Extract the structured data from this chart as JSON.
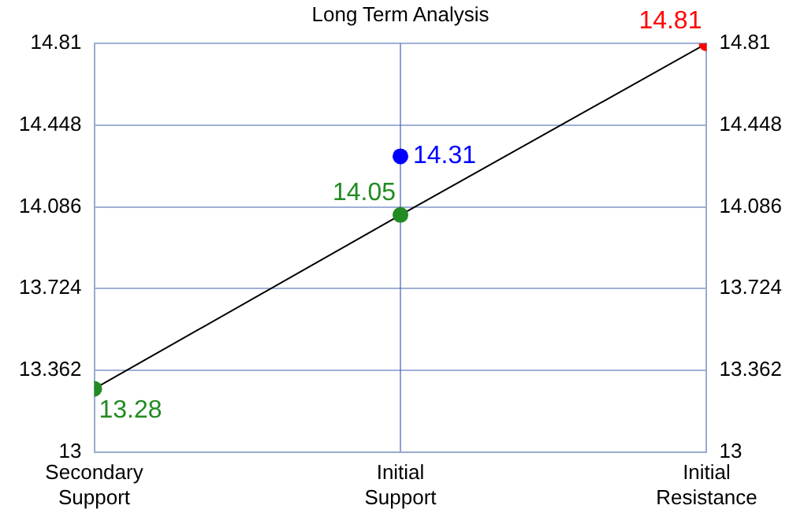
{
  "chart_data": {
    "type": "line",
    "title": "Long Term Analysis",
    "categories": [
      "Secondary Support",
      "Initial Support",
      "Initial Resistance"
    ],
    "ylim": [
      13,
      14.81
    ],
    "yticks": [
      13,
      13.362,
      13.724,
      14.086,
      14.448,
      14.81
    ],
    "y2lim": [
      13,
      14.81
    ],
    "y2ticks": [
      13,
      13.362,
      13.724,
      14.086,
      14.448,
      14.81
    ],
    "grid": true,
    "marker": "circle",
    "data_labels": true,
    "series": [
      {
        "color": "#000000",
        "values": [
          13.28,
          14.05,
          14.81
        ],
        "colors": [
          "#228b22",
          "#228b22",
          "#ff0000"
        ]
      },
      {
        "type": "scatter",
        "values": [
          null,
          14.31,
          null
        ],
        "color": "#0000ff"
      }
    ]
  }
}
